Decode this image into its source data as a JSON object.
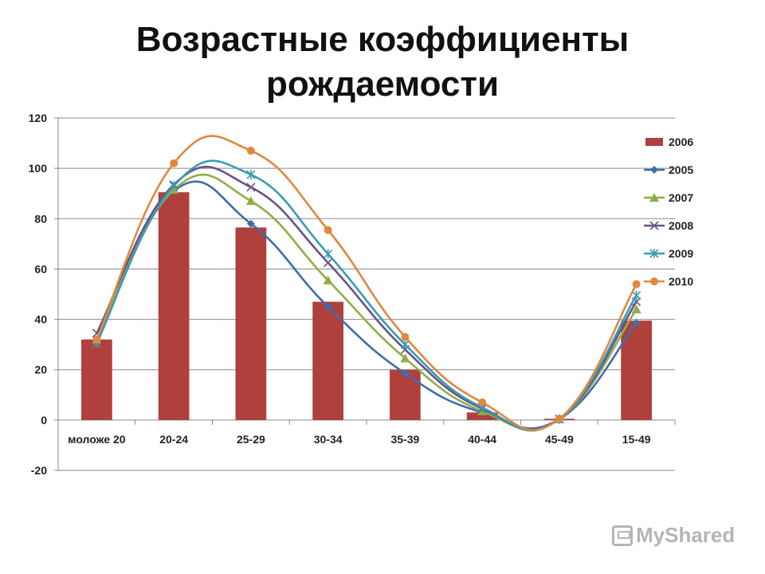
{
  "title": {
    "line1": "Возрастные коэффициенты",
    "line2": "рождаемости"
  },
  "chart_data": {
    "type": "bar",
    "categories": [
      "моложе 20",
      "20-24",
      "25-29",
      "30-34",
      "35-39",
      "40-44",
      "45-49",
      "15-49"
    ],
    "ylim": [
      -20,
      120
    ],
    "yticks": [
      -20,
      0,
      20,
      40,
      60,
      80,
      100,
      120
    ],
    "grid": true,
    "legend_position": "right",
    "series": [
      {
        "name": "2006",
        "kind": "bar",
        "marker": "square",
        "color": "#b0403c",
        "values": [
          32,
          90.5,
          76.5,
          47,
          20,
          3,
          0.5,
          39.5
        ]
      },
      {
        "name": "2005",
        "kind": "line",
        "marker": "diamond",
        "color": "#3f6ea8",
        "values": [
          31,
          91,
          78,
          45,
          18.5,
          3,
          0.3,
          38.5
        ]
      },
      {
        "name": "2007",
        "kind": "line",
        "marker": "triangle",
        "color": "#8fae48",
        "values": [
          32,
          91.5,
          87,
          55.5,
          24.5,
          3.5,
          0.3,
          44
        ]
      },
      {
        "name": "2008",
        "kind": "line",
        "marker": "x",
        "color": "#6a5289",
        "values": [
          34.5,
          93.5,
          92.5,
          62.5,
          28,
          4.5,
          0.4,
          47
        ]
      },
      {
        "name": "2009",
        "kind": "line",
        "marker": "star",
        "color": "#3a9bb5",
        "values": [
          30.5,
          93,
          97.5,
          66,
          30,
          5,
          0.4,
          49.5
        ]
      },
      {
        "name": "2010",
        "kind": "line",
        "marker": "circle",
        "color": "#e0883e",
        "values": [
          32,
          102,
          107,
          75.5,
          33,
          7,
          0.5,
          54
        ]
      }
    ]
  },
  "watermark": {
    "text": "MyShared",
    "icon": "presentation-icon"
  }
}
